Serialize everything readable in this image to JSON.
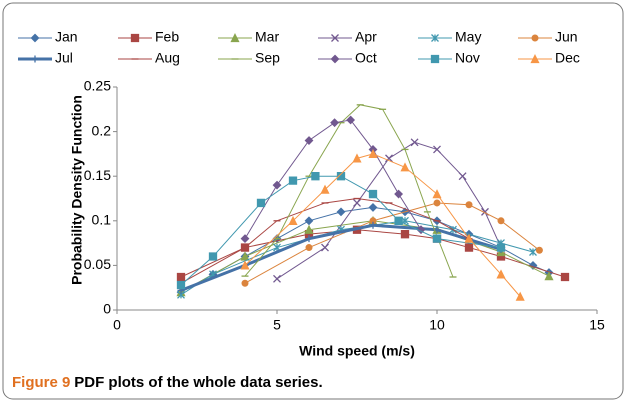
{
  "chart_data": {
    "type": "line",
    "x_label": "Wind speed (m/s)",
    "y_label": "Probability Density Function",
    "caption_label": "Figure 9",
    "caption_text": "PDF plots of the whole data series.",
    "xlim": [
      0,
      15
    ],
    "xticks": [
      0,
      5,
      10,
      15
    ],
    "ylim": [
      0,
      0.25
    ],
    "yticks": [
      0,
      0.05,
      0.1,
      0.15,
      0.2,
      0.25
    ],
    "legend": "top",
    "series": [
      {
        "name": "Jan",
        "color": "#4572a7",
        "marker": "diamond",
        "line_width": 1,
        "x": [
          2,
          3,
          4,
          5,
          6,
          7,
          8,
          9,
          10,
          11,
          12,
          13,
          13.5
        ],
        "values": [
          0.02,
          0.04,
          0.06,
          0.08,
          0.1,
          0.11,
          0.115,
          0.11,
          0.1,
          0.085,
          0.07,
          0.05,
          0.042
        ]
      },
      {
        "name": "Feb",
        "color": "#aa4643",
        "marker": "square",
        "line_width": 1,
        "x": [
          2,
          4,
          6,
          7.5,
          9,
          10,
          11,
          12,
          14
        ],
        "values": [
          0.037,
          0.07,
          0.085,
          0.09,
          0.085,
          0.08,
          0.07,
          0.06,
          0.037
        ]
      },
      {
        "name": "Mar",
        "color": "#89a54e",
        "marker": "triangle",
        "line_width": 1,
        "x": [
          2,
          4,
          6,
          8,
          10,
          12,
          13.5
        ],
        "values": [
          0.02,
          0.06,
          0.09,
          0.1,
          0.09,
          0.065,
          0.038
        ]
      },
      {
        "name": "Apr",
        "color": "#71588f",
        "marker": "cross",
        "line_width": 1,
        "x": [
          5,
          6.5,
          7.5,
          8.5,
          9.3,
          10,
          10.8,
          11.5,
          12
        ],
        "values": [
          0.035,
          0.07,
          0.12,
          0.17,
          0.188,
          0.18,
          0.15,
          0.11,
          0.07
        ]
      },
      {
        "name": "May",
        "color": "#4198af",
        "marker": "star",
        "line_width": 1,
        "x": [
          2,
          3,
          5,
          7,
          9,
          10.5,
          12,
          13
        ],
        "values": [
          0.017,
          0.04,
          0.07,
          0.09,
          0.1,
          0.09,
          0.075,
          0.065
        ]
      },
      {
        "name": "Jun",
        "color": "#db843d",
        "marker": "circle",
        "line_width": 1,
        "x": [
          4,
          6,
          8,
          10,
          11,
          12,
          13.2
        ],
        "values": [
          0.03,
          0.07,
          0.1,
          0.12,
          0.118,
          0.1,
          0.067
        ]
      },
      {
        "name": "Jul",
        "color": "#4572a7",
        "marker": "plus",
        "line_width": 3,
        "x": [
          2,
          4,
          6,
          8,
          10,
          12
        ],
        "values": [
          0.022,
          0.05,
          0.08,
          0.095,
          0.09,
          0.068
        ]
      },
      {
        "name": "Aug",
        "color": "#aa4643",
        "marker": "dash",
        "line_width": 1,
        "x": [
          2,
          4,
          5,
          6.5,
          7.5,
          8.5,
          10,
          11
        ],
        "values": [
          0.03,
          0.07,
          0.1,
          0.12,
          0.125,
          0.12,
          0.1,
          0.08
        ]
      },
      {
        "name": "Sep",
        "color": "#89a54e",
        "marker": "dash",
        "line_width": 1,
        "x": [
          4,
          5,
          6,
          7,
          7.6,
          8.3,
          9,
          9.7,
          10.5
        ],
        "values": [
          0.038,
          0.08,
          0.15,
          0.21,
          0.23,
          0.225,
          0.18,
          0.11,
          0.037
        ]
      },
      {
        "name": "Oct",
        "color": "#71588f",
        "marker": "diamond",
        "line_width": 1,
        "x": [
          4,
          5,
          6,
          6.8,
          7.3,
          8,
          8.8,
          9.5
        ],
        "values": [
          0.08,
          0.14,
          0.19,
          0.21,
          0.213,
          0.18,
          0.13,
          0.09
        ]
      },
      {
        "name": "Nov",
        "color": "#4198af",
        "marker": "square",
        "line_width": 1,
        "x": [
          2,
          3,
          4.5,
          5.5,
          6.2,
          7,
          8,
          8.8,
          10,
          12
        ],
        "values": [
          0.028,
          0.06,
          0.12,
          0.145,
          0.15,
          0.15,
          0.13,
          0.1,
          0.08,
          0.07
        ]
      },
      {
        "name": "Dec",
        "color": "#f79646",
        "marker": "triangle",
        "line_width": 1,
        "x": [
          4,
          5.5,
          6.5,
          7.5,
          8,
          9,
          10,
          11,
          12,
          12.6
        ],
        "values": [
          0.05,
          0.1,
          0.135,
          0.17,
          0.175,
          0.16,
          0.13,
          0.08,
          0.04,
          0.015
        ]
      }
    ]
  }
}
